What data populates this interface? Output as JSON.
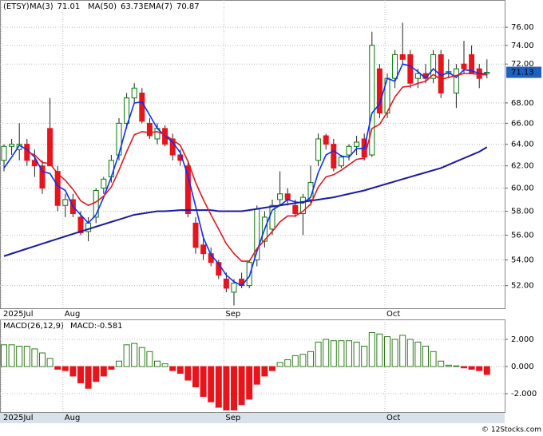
{
  "chart_data": [
    {
      "type": "candlestick",
      "title": "(ETSY)",
      "categories": [
        "2025Jul",
        null,
        null,
        null,
        null,
        null,
        null,
        null,
        "Aug",
        null,
        null,
        null,
        null,
        null,
        null,
        null,
        null,
        null,
        null,
        null,
        null,
        null,
        null,
        null,
        null,
        null,
        null,
        null,
        null,
        "Sep",
        null,
        null,
        null,
        null,
        null,
        null,
        null,
        null,
        null,
        null,
        null,
        null,
        null,
        null,
        null,
        null,
        null,
        null,
        null,
        null,
        "Oct",
        null,
        null,
        null,
        null,
        null,
        null,
        null,
        null,
        null,
        null,
        null,
        null,
        null
      ],
      "open": [
        62.5,
        63.8,
        63.5,
        64,
        62.5,
        62,
        65.5,
        61.5,
        58.5,
        59,
        57.5,
        56.3,
        57.5,
        60,
        61,
        63,
        66,
        68.5,
        69,
        66,
        64.5,
        65.5,
        64.5,
        63,
        62,
        57,
        55.2,
        54.5,
        53.8,
        52.5,
        51.5,
        52.5,
        52,
        54,
        55.5,
        56.5,
        59,
        59.5,
        58.5,
        57.8,
        59,
        62.5,
        64.8,
        64,
        62,
        63,
        63.8,
        64.5,
        63,
        71.5,
        67,
        70.5,
        73,
        73,
        70.5,
        71,
        70.5,
        73,
        71,
        69,
        72,
        73,
        71.5,
        71
      ],
      "high": [
        64,
        64.5,
        66,
        64.5,
        63.5,
        62.5,
        68.5,
        62,
        59.5,
        59.5,
        58,
        57.5,
        60,
        61,
        63,
        66.5,
        69,
        70,
        69.5,
        66.5,
        66,
        65.8,
        65,
        63.5,
        62.5,
        57.5,
        56,
        55,
        54,
        53,
        52.5,
        53,
        54,
        58.5,
        58,
        59,
        61.5,
        60,
        59,
        59.5,
        62,
        65,
        65,
        64.5,
        63,
        64,
        64.8,
        65,
        75.5,
        72,
        71,
        73.5,
        76.5,
        73.5,
        71.5,
        72,
        73.5,
        73.5,
        72.5,
        72,
        74.5,
        74,
        72,
        72.5
      ],
      "low": [
        61.5,
        63,
        62.5,
        62,
        61,
        59.5,
        62,
        58,
        57.5,
        57.5,
        56,
        55.5,
        57,
        59.5,
        60.5,
        62.5,
        65.5,
        68,
        66,
        64.5,
        64,
        63.8,
        62.5,
        62,
        57.5,
        54.5,
        54,
        53.5,
        52.5,
        51.5,
        50.5,
        51.8,
        51.8,
        53.5,
        55,
        56,
        58.5,
        58.5,
        57.5,
        56,
        58.5,
        62,
        63.5,
        61.5,
        61.8,
        62.5,
        63,
        62.5,
        62.8,
        66.5,
        66.5,
        69.5,
        72,
        69.5,
        69.5,
        70,
        70,
        68.5,
        70.5,
        67.5,
        71,
        71,
        69.5,
        70.5
      ],
      "close": [
        63.8,
        64,
        64,
        62.5,
        62,
        60,
        62,
        58.5,
        59,
        57.8,
        56.2,
        57,
        59.8,
        60.8,
        62.5,
        66,
        68.5,
        69.5,
        66.2,
        64.8,
        65.5,
        64,
        63,
        62.5,
        57.8,
        55,
        54.5,
        53.8,
        52.8,
        51.8,
        52.2,
        52,
        53.8,
        58.2,
        57.5,
        58.5,
        59.5,
        59,
        57.8,
        59.2,
        60.5,
        64.5,
        64,
        61.8,
        62.8,
        63.8,
        64.2,
        62.8,
        74,
        67,
        70.5,
        73,
        72.5,
        70,
        71,
        70.5,
        73,
        69,
        71.2,
        71.5,
        71.5,
        71,
        70.5,
        71.13
      ],
      "series": [
        {
          "name": "MA(3)",
          "color": "#0a2dff",
          "values": [
            61.8,
            62.8,
            63.9,
            63.5,
            62.8,
            61.5,
            61.3,
            60.2,
            59.8,
            58.4,
            57.7,
            57.0,
            57.7,
            59.2,
            61.0,
            63.1,
            65.7,
            68.0,
            68.1,
            66.8,
            65.5,
            64.8,
            64.2,
            63.2,
            61.1,
            58.4,
            55.8,
            54.4,
            53.7,
            52.8,
            52.3,
            52.0,
            52.7,
            54.7,
            56.5,
            58.1,
            58.5,
            59.0,
            58.8,
            58.7,
            59.2,
            61.4,
            63.0,
            63.4,
            62.9,
            62.8,
            63.6,
            63.6,
            67.0,
            67.9,
            70.5,
            70.2,
            72.0,
            71.8,
            71.2,
            70.5,
            71.5,
            70.8,
            71.1,
            70.6,
            71.4,
            71.3,
            71.0,
            71.01
          ]
        },
        {
          "name": "MA(50)",
          "color": "#1a1aa6",
          "values": [
            54.3,
            54.5,
            54.7,
            54.9,
            55.1,
            55.3,
            55.5,
            55.7,
            55.9,
            56.1,
            56.3,
            56.5,
            56.7,
            56.9,
            57.1,
            57.3,
            57.5,
            57.7,
            57.8,
            57.9,
            58.0,
            58.0,
            58.05,
            58.1,
            58.1,
            58.1,
            58.1,
            58.1,
            58.0,
            58.0,
            58.0,
            58.0,
            58.1,
            58.2,
            58.3,
            58.4,
            58.5,
            58.6,
            58.7,
            58.8,
            58.9,
            59.0,
            59.1,
            59.2,
            59.35,
            59.5,
            59.65,
            59.8,
            60.0,
            60.2,
            60.4,
            60.6,
            60.8,
            61.0,
            61.2,
            61.4,
            61.6,
            61.8,
            62.1,
            62.4,
            62.7,
            63.0,
            63.3,
            63.73
          ]
        },
        {
          "name": "EMA(7)",
          "color": "#e8141c",
          "values": [
            null,
            null,
            null,
            63.3,
            63.0,
            62.3,
            62.2,
            61.3,
            60.7,
            59.9,
            58.9,
            58.5,
            58.8,
            59.3,
            60.1,
            61.6,
            63.3,
            64.9,
            65.2,
            65.1,
            65.2,
            64.9,
            64.4,
            63.9,
            62.4,
            60.5,
            59.0,
            57.7,
            56.5,
            55.3,
            54.5,
            53.9,
            53.9,
            54.9,
            55.6,
            56.3,
            57.1,
            57.6,
            57.6,
            58.0,
            58.6,
            60.1,
            61.0,
            61.2,
            61.6,
            62.1,
            62.6,
            62.7,
            65.5,
            65.9,
            67.1,
            68.6,
            69.6,
            69.7,
            70.0,
            70.2,
            70.9,
            70.4,
            70.6,
            70.8,
            71.0,
            71.0,
            70.9,
            70.87
          ]
        }
      ],
      "up_color": "#007a00",
      "down_color": "#e8141c",
      "log": true,
      "grid": true,
      "ylim": [
        50.3,
        79.1
      ],
      "yticks": [
        {
          "value": 52,
          "label": "52.00"
        },
        {
          "value": 54,
          "label": "54.00"
        },
        {
          "value": 56,
          "label": "56.00"
        },
        {
          "value": 58,
          "label": "58.00"
        },
        {
          "value": 60,
          "label": "60.00"
        },
        {
          "value": 62,
          "label": "62.00"
        },
        {
          "value": 64,
          "label": "64.00"
        },
        {
          "value": 66,
          "label": "66.00"
        },
        {
          "value": 68,
          "label": "68.00"
        },
        {
          "value": 72,
          "label": "72.00"
        },
        {
          "value": 74,
          "label": "74.00"
        },
        {
          "value": 76,
          "label": "76.00"
        }
      ],
      "price_box_color": "#1f5fbf"
    },
    {
      "type": "bar",
      "title": "MACD(26,12,9)",
      "value_prefix": "MACD:",
      "categories": [
        "2025Jul",
        null,
        null,
        null,
        null,
        null,
        null,
        null,
        "Aug",
        null,
        null,
        null,
        null,
        null,
        null,
        null,
        null,
        null,
        null,
        null,
        null,
        null,
        null,
        null,
        null,
        null,
        null,
        null,
        null,
        "Sep",
        null,
        null,
        null,
        null,
        null,
        null,
        null,
        null,
        null,
        null,
        null,
        null,
        null,
        null,
        null,
        null,
        null,
        null,
        null,
        null,
        "Oct",
        null,
        null,
        null,
        null,
        null,
        null,
        null,
        null,
        null,
        null,
        null,
        null,
        null
      ],
      "values": [
        1.6,
        1.6,
        1.5,
        1.5,
        1.3,
        1.0,
        0.6,
        -0.2,
        -0.3,
        -0.7,
        -1.2,
        -1.6,
        -1.1,
        -0.7,
        -0.2,
        0.4,
        1.6,
        1.7,
        1.4,
        1.1,
        0.4,
        0.2,
        -0.3,
        -0.5,
        -1.0,
        -1.5,
        -2.2,
        -2.6,
        -3.0,
        -3.2,
        -3.2,
        -2.8,
        -2.4,
        -1.3,
        -0.7,
        -0.3,
        0.3,
        0.5,
        0.8,
        0.9,
        1.1,
        1.8,
        2.0,
        1.9,
        1.9,
        1.9,
        1.8,
        1.5,
        2.5,
        2.4,
        2.2,
        2.0,
        2.3,
        2.0,
        1.8,
        1.5,
        1.1,
        0.4,
        0.1,
        0.05,
        -0.1,
        -0.2,
        -0.3,
        -0.581
      ],
      "up_color": "#2e7d1a",
      "down_color": "#e8141c",
      "grid": true,
      "ylim": [
        -3.35,
        3.47
      ],
      "yticks": [
        {
          "value": -2,
          "label": "-2.000"
        },
        {
          "value": 0,
          "label": "0.000"
        },
        {
          "value": 2,
          "label": "2.000"
        }
      ]
    }
  ],
  "watermark": "© 12Stocks.com"
}
